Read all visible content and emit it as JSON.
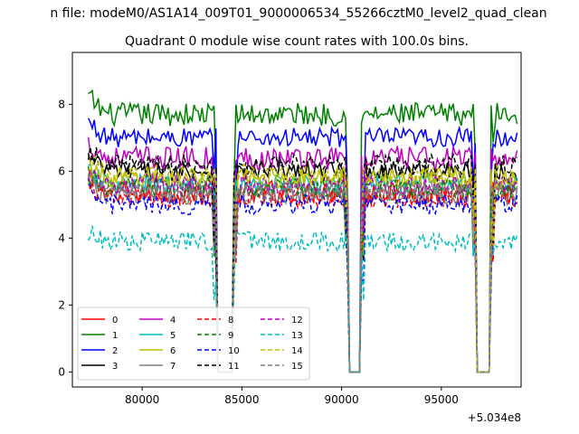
{
  "figure": {
    "suptitle": "n file: modeM0/AS1A14_009T01_9000006534_55266cztM0_level2_quad_clean",
    "title": "Quadrant 0 module wise count rates with 100.0s bins.",
    "offset_label": "+5.034e8"
  },
  "chart_data": {
    "type": "line",
    "title": "Quadrant 0 module wise count rates with 100.0s bins.",
    "xlabel": "",
    "ylabel": "",
    "x_offset": 503400000,
    "xlim": [
      76500,
      99000
    ],
    "ylim": [
      -0.45,
      9.55
    ],
    "x_ticks": [
      80000,
      85000,
      90000,
      95000
    ],
    "x_tick_labels": [
      "80000",
      "85000",
      "90000",
      "95000"
    ],
    "y_ticks": [
      0,
      2,
      4,
      6,
      8
    ],
    "y_tick_labels": [
      "0",
      "2",
      "4",
      "6",
      "8"
    ],
    "legend_placement": "lower-left",
    "bin_seconds": 100,
    "x_start": 77300,
    "x_end": 98800,
    "gaps": [
      [
        83800,
        84500
      ],
      [
        90400,
        90900
      ],
      [
        96800,
        97400
      ]
    ],
    "series": [
      {
        "name": "0",
        "color": "#ff0000",
        "style": "solid",
        "mean": 5.4,
        "noise": 0.35
      },
      {
        "name": "1",
        "color": "#008000",
        "style": "solid",
        "mean": 7.7,
        "noise": 0.35
      },
      {
        "name": "2",
        "color": "#0000ff",
        "style": "solid",
        "mean": 7.0,
        "noise": 0.3
      },
      {
        "name": "3",
        "color": "#000000",
        "style": "solid",
        "mean": 6.0,
        "noise": 0.3
      },
      {
        "name": "4",
        "color": "#bf00bf",
        "style": "solid",
        "mean": 6.4,
        "noise": 0.35
      },
      {
        "name": "5",
        "color": "#00bfbf",
        "style": "solid",
        "mean": 5.6,
        "noise": 0.3
      },
      {
        "name": "6",
        "color": "#bfbf00",
        "style": "solid",
        "mean": 5.8,
        "noise": 0.3
      },
      {
        "name": "7",
        "color": "#808080",
        "style": "solid",
        "mean": 5.3,
        "noise": 0.3
      },
      {
        "name": "8",
        "color": "#ff0000",
        "style": "dashed",
        "mean": 5.2,
        "noise": 0.3
      },
      {
        "name": "9",
        "color": "#008000",
        "style": "dashed",
        "mean": 5.5,
        "noise": 0.3
      },
      {
        "name": "10",
        "color": "#0000ff",
        "style": "dashed",
        "mean": 5.0,
        "noise": 0.3
      },
      {
        "name": "11",
        "color": "#000000",
        "style": "dashed",
        "mean": 6.2,
        "noise": 0.3
      },
      {
        "name": "12",
        "color": "#bf00bf",
        "style": "dashed",
        "mean": 5.6,
        "noise": 0.3
      },
      {
        "name": "13",
        "color": "#00bfbf",
        "style": "dashed",
        "mean": 3.9,
        "noise": 0.3
      },
      {
        "name": "14",
        "color": "#bfbf00",
        "style": "dashed",
        "mean": 5.9,
        "noise": 0.3
      },
      {
        "name": "15",
        "color": "#808080",
        "style": "dashed",
        "mean": 5.4,
        "noise": 0.3
      }
    ]
  }
}
